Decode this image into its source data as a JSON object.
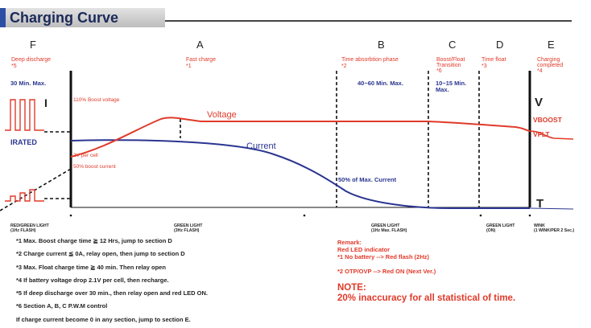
{
  "title": "Charging Curve",
  "sections": [
    {
      "letter": "F",
      "desc": "Deep discharge",
      "ref": "*5"
    },
    {
      "letter": "A",
      "desc": "Fast charge",
      "ref": "*1"
    },
    {
      "letter": "B",
      "desc": "Time absorbtion phase",
      "ref": "*2"
    },
    {
      "letter": "C",
      "desc": "Boost/Float",
      "desc2": "Transition",
      "ref": "*6"
    },
    {
      "letter": "D",
      "desc": "Time float",
      "ref": "*3"
    },
    {
      "letter": "E",
      "desc": "Charging",
      "desc2": "completed",
      "ref": "*4"
    }
  ],
  "durations": {
    "f": "30 Min. Max.",
    "b": "40~60 Min. Max.",
    "c1": "10~15 Min.",
    "c2": "Max."
  },
  "curve_labels": {
    "i": "I",
    "irated": "IRATED",
    "boost_pct": "110% Boost voltage",
    "voltage": "Voltage",
    "current": "Current",
    "per_cell": "2V per cell",
    "boost_current": "50% boost current",
    "max_current": "50% of Max. Current",
    "v": "V",
    "vboost": "VBOOST",
    "vflt": "VFLT",
    "t": "T"
  },
  "led_states": [
    {
      "line1": "RED/GREEN LIGHT",
      "line2": "(1Hz FLASH)"
    },
    {
      "line1": "GREEN LIGHT",
      "line2": "(3Hz FLASH)"
    },
    {
      "line1": "GREEN LIGHT",
      "line2": "(1Hz Max. FLASH)"
    },
    {
      "line1": "GREEN LIGHT",
      "line2": "(ON)"
    },
    {
      "line1": "WINK",
      "line2": "(1 WINK/PER 2 Sec.)"
    }
  ],
  "notes": [
    "*1 Max. Boost charge time ≧ 12 Hrs, jump to section D",
    "*2 Charge current ≦ 0A, relay open, then jump to section D",
    "*3 Max. Float charge time ≧ 40 min. Then relay open",
    "*4 If battery voltage drop 2.1V per cell, then recharge.",
    "*5 If deep discharge over 30 min., then relay open and red LED ON.",
    "*6 Section A, B, C P.W.M control",
    "If charge current become 0 in any section, jump to section E."
  ],
  "remark": {
    "title": "Remark:",
    "line1": "Red LED indicator",
    "line2": "*1 No battery --> Red flash (2Hz)",
    "line3": "*2 OTP/OVP --> Red ON (Next Ver.)"
  },
  "note": {
    "title": "NOTE:",
    "text": "20% inaccuracy for all statistical of time."
  },
  "colors": {
    "voltage": "#e03a2a",
    "current": "#2a3590",
    "dark": "#111111",
    "red_text": "#e03a2a",
    "header_blue": "#2d4fa3"
  }
}
